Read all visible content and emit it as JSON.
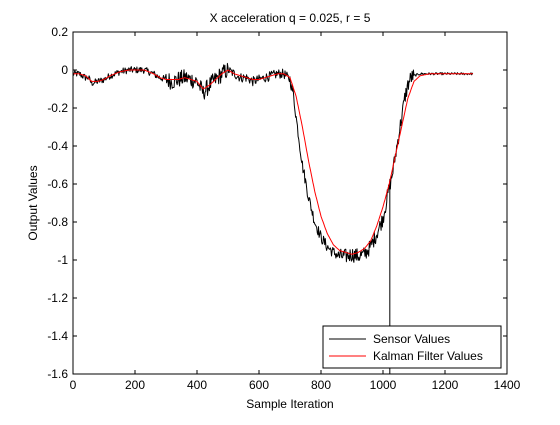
{
  "chart_data": {
    "type": "line",
    "title": "X acceleration q = 0.025, r = 5",
    "xlabel": "Sample Iteration",
    "ylabel": "Output Values",
    "xlim": [
      0,
      1400
    ],
    "ylim": [
      -1.6,
      0.2
    ],
    "xticks": [
      0,
      200,
      400,
      600,
      800,
      1000,
      1200,
      1400
    ],
    "xtick_labels": [
      "0",
      "200",
      "400",
      "600",
      "800",
      "1000",
      "1200",
      "1400"
    ],
    "yticks": [
      0.2,
      0,
      -0.2,
      -0.4,
      -0.6,
      -0.8,
      -1,
      -1.2,
      -1.4,
      -1.6
    ],
    "ytick_labels": [
      "0.2",
      "0",
      "-0.2",
      "-0.4",
      "-0.6",
      "-0.8",
      "-1",
      "-1.2",
      "-1.4",
      "-1.6"
    ],
    "grid": false,
    "legend_position": "bottom-right",
    "series": [
      {
        "name": "Sensor Values",
        "color": "#000000",
        "noisy": true,
        "x": [
          0,
          20,
          40,
          50,
          60,
          80,
          100,
          120,
          150,
          180,
          200,
          230,
          260,
          280,
          300,
          320,
          340,
          360,
          380,
          400,
          420,
          440,
          460,
          480,
          500,
          520,
          540,
          560,
          580,
          600,
          620,
          640,
          660,
          680,
          700,
          710,
          720,
          740,
          760,
          780,
          800,
          820,
          840,
          860,
          880,
          900,
          920,
          940,
          960,
          980,
          1000,
          1010,
          1020,
          1030,
          1040,
          1050,
          1060,
          1070,
          1080,
          1090,
          1100,
          1120,
          1150,
          1200,
          1250,
          1290
        ],
        "y": [
          -0.02,
          -0.02,
          -0.04,
          -0.04,
          -0.07,
          -0.06,
          -0.05,
          -0.03,
          -0.01,
          0.0,
          0.0,
          0.0,
          -0.02,
          -0.04,
          -0.05,
          -0.06,
          -0.05,
          -0.04,
          -0.05,
          -0.06,
          -0.12,
          -0.08,
          -0.05,
          -0.02,
          0.0,
          -0.02,
          -0.04,
          -0.04,
          -0.06,
          -0.05,
          -0.04,
          -0.03,
          -0.02,
          -0.02,
          -0.05,
          -0.12,
          -0.25,
          -0.5,
          -0.67,
          -0.8,
          -0.88,
          -0.93,
          -0.96,
          -0.98,
          -0.98,
          -0.97,
          -0.98,
          -0.97,
          -0.93,
          -0.86,
          -0.78,
          -0.7,
          -0.62,
          -0.55,
          -0.45,
          -0.35,
          -0.25,
          -0.15,
          -0.08,
          -0.04,
          -0.03,
          -0.02,
          -0.02,
          -0.02,
          -0.02,
          -0.02
        ],
        "spike": {
          "x": 1022,
          "y": -1.6
        }
      },
      {
        "name": "Kalman Filter Values",
        "color": "#ff0000",
        "noisy": false,
        "x": [
          0,
          20,
          40,
          60,
          80,
          100,
          120,
          150,
          180,
          200,
          230,
          260,
          280,
          300,
          320,
          340,
          360,
          380,
          400,
          420,
          440,
          460,
          480,
          500,
          520,
          540,
          560,
          580,
          600,
          620,
          640,
          660,
          680,
          700,
          720,
          740,
          760,
          780,
          800,
          820,
          840,
          860,
          880,
          900,
          920,
          940,
          960,
          980,
          1000,
          1020,
          1040,
          1060,
          1080,
          1100,
          1120,
          1150,
          1200,
          1250,
          1290
        ],
        "y": [
          -0.02,
          -0.02,
          -0.03,
          -0.06,
          -0.06,
          -0.05,
          -0.03,
          -0.01,
          0.0,
          0.0,
          0.0,
          -0.02,
          -0.04,
          -0.05,
          -0.05,
          -0.05,
          -0.04,
          -0.05,
          -0.06,
          -0.1,
          -0.08,
          -0.05,
          -0.02,
          0.0,
          -0.02,
          -0.03,
          -0.04,
          -0.05,
          -0.05,
          -0.04,
          -0.03,
          -0.02,
          -0.02,
          -0.04,
          -0.14,
          -0.3,
          -0.48,
          -0.64,
          -0.77,
          -0.86,
          -0.92,
          -0.95,
          -0.96,
          -0.97,
          -0.96,
          -0.94,
          -0.9,
          -0.82,
          -0.72,
          -0.6,
          -0.45,
          -0.3,
          -0.15,
          -0.06,
          -0.03,
          -0.02,
          -0.02,
          -0.02,
          -0.02
        ]
      }
    ]
  }
}
